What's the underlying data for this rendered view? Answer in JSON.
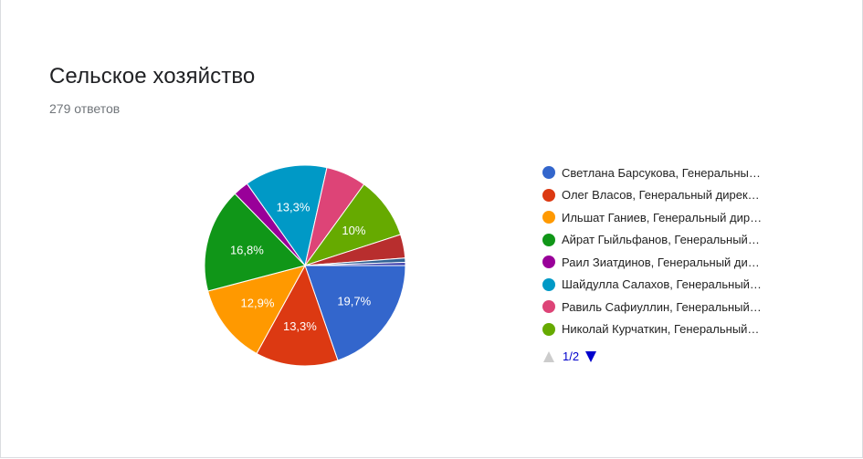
{
  "card": {
    "title": "Сельское хозяйство",
    "responses": "279 ответов"
  },
  "legend": {
    "items": [
      {
        "label": "Светлана Барсукова, Генеральны…",
        "color": "#3366cc"
      },
      {
        "label": "Олег Власов, Генеральный дирек…",
        "color": "#dc3912"
      },
      {
        "label": "Ильшат Ганиев, Генеральный дир…",
        "color": "#ff9900"
      },
      {
        "label": "Айрат Гыйльфанов, Генеральный…",
        "color": "#109618"
      },
      {
        "label": "Раил Зиатдинов, Генеральный ди…",
        "color": "#990099"
      },
      {
        "label": "Шайдулла Салахов, Генеральный…",
        "color": "#0099c6"
      },
      {
        "label": "Равиль Сафиуллин, Генеральный…",
        "color": "#dd4477"
      },
      {
        "label": "Николай Курчаткин, Генеральный…",
        "color": "#66aa00"
      }
    ],
    "pager": {
      "page_text": "1/2",
      "prev_color": "#cccccc",
      "next_color": "#0000cc"
    }
  },
  "chart_data": {
    "type": "pie",
    "title": "Сельское хозяйство",
    "subtitle": "279 ответов",
    "start_angle_deg": 90,
    "direction": "clockwise",
    "slices": [
      {
        "label": "Светлана Барсукова, Генеральны…",
        "percent": 19.7,
        "value_label": "19,7%",
        "color": "#3366cc"
      },
      {
        "label": "Олег Власов, Генеральный дирек…",
        "percent": 13.3,
        "value_label": "13,3%",
        "color": "#dc3912"
      },
      {
        "label": "Ильшат Ганиев, Генеральный дир…",
        "percent": 12.9,
        "value_label": "12,9%",
        "color": "#ff9900"
      },
      {
        "label": "Айрат Гыйльфанов, Генеральный…",
        "percent": 16.8,
        "value_label": "16,8%",
        "color": "#109618"
      },
      {
        "label": "Раил Зиатдинов, Генеральный ди…",
        "percent": 2.5,
        "value_label": "",
        "color": "#990099"
      },
      {
        "label": "Шайдулла Салахов, Генеральный…",
        "percent": 13.3,
        "value_label": "13,3%",
        "color": "#0099c6"
      },
      {
        "label": "Равиль Сафиуллин, Генеральный…",
        "percent": 6.5,
        "value_label": "",
        "color": "#dd4477"
      },
      {
        "label": "Николай Курчаткин, Генеральный…",
        "percent": 10.0,
        "value_label": "10%",
        "color": "#66aa00"
      },
      {
        "label": "",
        "percent": 3.8,
        "value_label": "",
        "color": "#b82e2e"
      },
      {
        "label": "",
        "percent": 0.7,
        "value_label": "",
        "color": "#316395"
      },
      {
        "label": "",
        "percent": 0.5,
        "value_label": "",
        "color": "#3b3eac"
      }
    ],
    "legend_position": "right"
  }
}
